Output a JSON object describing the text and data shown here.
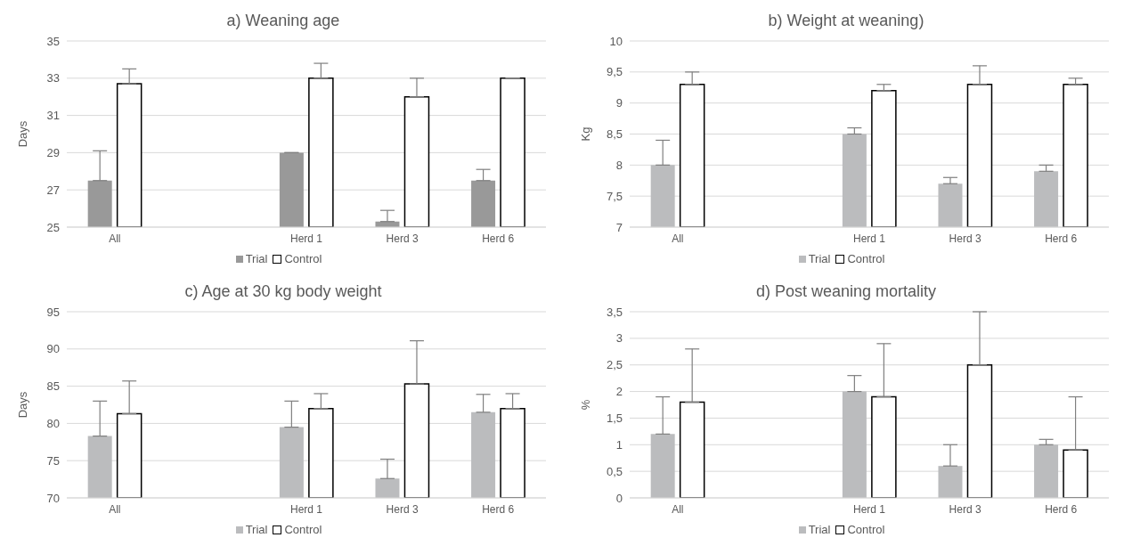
{
  "chart_data": [
    {
      "type": "bar",
      "title": "a) Weaning age",
      "ylabel": "Days",
      "categories": [
        "All",
        null,
        "Herd 1",
        "Herd 3",
        "Herd 6"
      ],
      "series": [
        {
          "name": "Trial",
          "color": "#999999",
          "values": [
            27.5,
            null,
            29,
            25.3,
            27.5
          ],
          "errors": [
            [
              27.5,
              29.1
            ],
            null,
            [
              29,
              29
            ],
            [
              25.3,
              25.9
            ],
            [
              27.5,
              28.1
            ]
          ]
        },
        {
          "name": "Control",
          "color": "#ffffff",
          "values": [
            32.7,
            null,
            33,
            32,
            33
          ],
          "errors": [
            [
              32.7,
              33.5
            ],
            null,
            [
              33,
              33.8
            ],
            [
              32,
              33
            ],
            [
              33,
              33
            ]
          ]
        }
      ],
      "ylim": [
        25,
        35
      ],
      "yticks": [
        25,
        27,
        29,
        31,
        33,
        35
      ],
      "grid": "y",
      "legend": "bottom"
    },
    {
      "type": "bar",
      "title": "b) Weight at weaning)",
      "ylabel": "Kg",
      "categories": [
        "All",
        null,
        "Herd 1",
        "Herd 3",
        "Herd 6"
      ],
      "series": [
        {
          "name": "Trial",
          "color": "#bbbcbe",
          "values": [
            8,
            null,
            8.5,
            7.7,
            7.9
          ],
          "errors": [
            [
              8,
              8.4
            ],
            null,
            [
              8.5,
              8.6
            ],
            [
              7.7,
              7.8
            ],
            [
              7.9,
              8
            ]
          ]
        },
        {
          "name": "Control",
          "color": "#ffffff",
          "values": [
            9.3,
            null,
            9.2,
            9.3,
            9.3
          ],
          "errors": [
            [
              9.3,
              9.5
            ],
            null,
            [
              9.2,
              9.3
            ],
            [
              9.3,
              9.6
            ],
            [
              9.3,
              9.4
            ]
          ]
        }
      ],
      "ylim": [
        7,
        10
      ],
      "yticks": [
        7,
        {
          "value": 7.5,
          "label": "7,5"
        },
        8,
        {
          "value": 8.5,
          "label": "8,5"
        },
        9,
        {
          "value": 9.5,
          "label": "9,5"
        },
        10
      ],
      "grid": "y",
      "legend": "bottom"
    },
    {
      "type": "bar",
      "title": "c) Age at 30 kg body weight",
      "ylabel": "Days",
      "categories": [
        "All",
        null,
        "Herd 1",
        "Herd 3",
        "Herd 6"
      ],
      "series": [
        {
          "name": "Trial",
          "color": "#bbbcbe",
          "values": [
            78.3,
            null,
            79.5,
            72.6,
            81.5
          ],
          "errors": [
            [
              78.3,
              83
            ],
            null,
            [
              79.5,
              83
            ],
            [
              72.6,
              75.2
            ],
            [
              81.5,
              83.9
            ]
          ]
        },
        {
          "name": "Control",
          "color": "#ffffff",
          "values": [
            81.3,
            null,
            82,
            85.3,
            82
          ],
          "errors": [
            [
              81.3,
              85.7
            ],
            null,
            [
              82,
              84
            ],
            [
              85.3,
              91.1
            ],
            [
              82,
              84
            ]
          ]
        }
      ],
      "ylim": [
        70,
        95
      ],
      "yticks": [
        70,
        75,
        80,
        85,
        90,
        95
      ],
      "grid": "y",
      "legend": "bottom"
    },
    {
      "type": "bar",
      "title": "d) Post weaning mortality",
      "ylabel": "%",
      "categories": [
        "All",
        null,
        "Herd 1",
        "Herd 3",
        "Herd 6"
      ],
      "series": [
        {
          "name": "Trial",
          "color": "#bbbcbe",
          "values": [
            1.2,
            null,
            2,
            0.6,
            1
          ],
          "errors": [
            [
              1.2,
              1.9
            ],
            null,
            [
              2,
              2.3
            ],
            [
              0.6,
              1
            ],
            [
              1,
              1.1
            ]
          ]
        },
        {
          "name": "Control",
          "color": "#ffffff",
          "values": [
            1.8,
            null,
            1.9,
            2.5,
            0.9
          ],
          "errors": [
            [
              1.8,
              2.8
            ],
            null,
            [
              1.9,
              2.9
            ],
            [
              2.5,
              3.5
            ],
            [
              0.9,
              1.9
            ]
          ]
        }
      ],
      "ylim": [
        0,
        3.5
      ],
      "yticks": [
        0,
        {
          "value": 0.5,
          "label": "0,5"
        },
        1,
        {
          "value": 1.5,
          "label": "1,5"
        },
        2,
        {
          "value": 2.5,
          "label": "2,5"
        },
        3,
        {
          "value": 3.5,
          "label": "3,5"
        }
      ],
      "grid": "y",
      "legend": "bottom"
    }
  ]
}
